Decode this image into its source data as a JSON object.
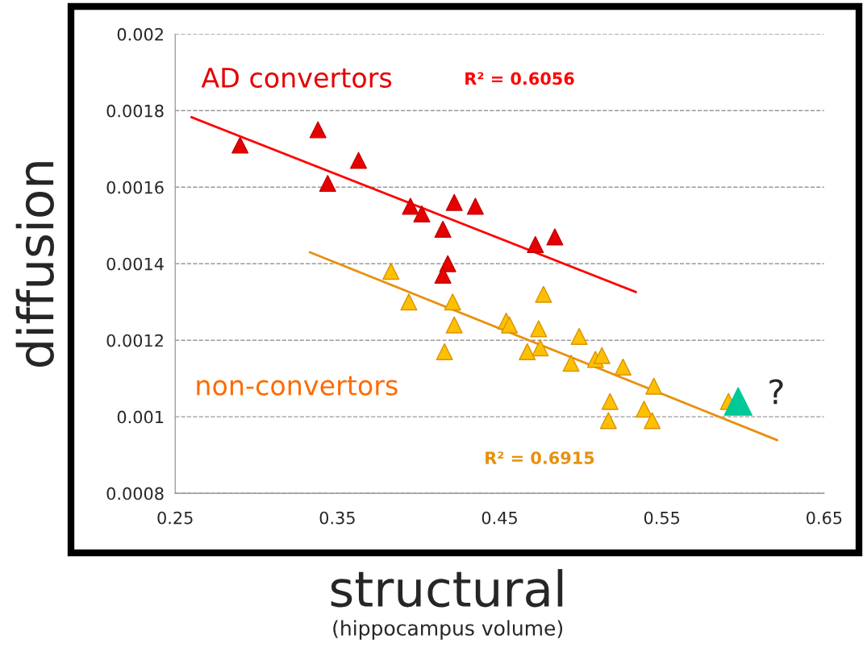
{
  "chart_data": {
    "type": "scatter",
    "xlabel": "structural",
    "ylabel": "diffusion",
    "xlim": [
      0.25,
      0.65
    ],
    "xticks": [
      0.25,
      0.35,
      0.45,
      0.55,
      0.65
    ],
    "ylim": [
      0.0008,
      0.002
    ],
    "yticks": [
      0.0008,
      0.001,
      0.0012,
      0.0014,
      0.0016,
      0.0018,
      0.002
    ],
    "grid": "y",
    "legend": false,
    "marker": "triangle",
    "series": [
      {
        "name": "AD convertors",
        "color": "#e60000",
        "x": [
          0.29,
          0.338,
          0.344,
          0.363,
          0.395,
          0.402,
          0.415,
          0.422,
          0.435,
          0.418,
          0.415,
          0.472,
          0.484
        ],
        "values": [
          0.00171,
          0.00175,
          0.00161,
          0.00167,
          0.00155,
          0.00153,
          0.00149,
          0.00156,
          0.00155,
          0.0014,
          0.00137,
          0.00145,
          0.00147
        ]
      },
      {
        "name": "non-convertors",
        "color": "#ffc000",
        "x": [
          0.383,
          0.394,
          0.421,
          0.422,
          0.416,
          0.454,
          0.456,
          0.477,
          0.474,
          0.467,
          0.475,
          0.499,
          0.494,
          0.509,
          0.513,
          0.526,
          0.518,
          0.517,
          0.539,
          0.544,
          0.545,
          0.591
        ],
        "values": [
          0.00138,
          0.0013,
          0.0013,
          0.00124,
          0.00117,
          0.00125,
          0.00124,
          0.00132,
          0.00123,
          0.00117,
          0.00118,
          0.00121,
          0.00114,
          0.00115,
          0.00116,
          0.00113,
          0.00104,
          0.00099,
          0.00102,
          0.00099,
          0.00108,
          0.00104
        ]
      },
      {
        "color": "#00c896",
        "x": [
          0.597
        ],
        "values": [
          0.00104
        ]
      },
      {
        "type": "line",
        "marker": "none",
        "color": "#ff0000",
        "x": [
          0.26,
          0.534
        ],
        "values": [
          0.001783,
          0.001326
        ]
      },
      {
        "type": "line",
        "marker": "none",
        "color": "#e8900c",
        "x": [
          0.333,
          0.621
        ],
        "values": [
          0.00143,
          0.000939
        ]
      }
    ],
    "annotations": [
      "R² = 0.6056",
      "R² = 0.6915",
      {
        "text": "?",
        "x": 0.597,
        "y": 0.00104
      },
      "(hippocampus volume)"
    ]
  }
}
